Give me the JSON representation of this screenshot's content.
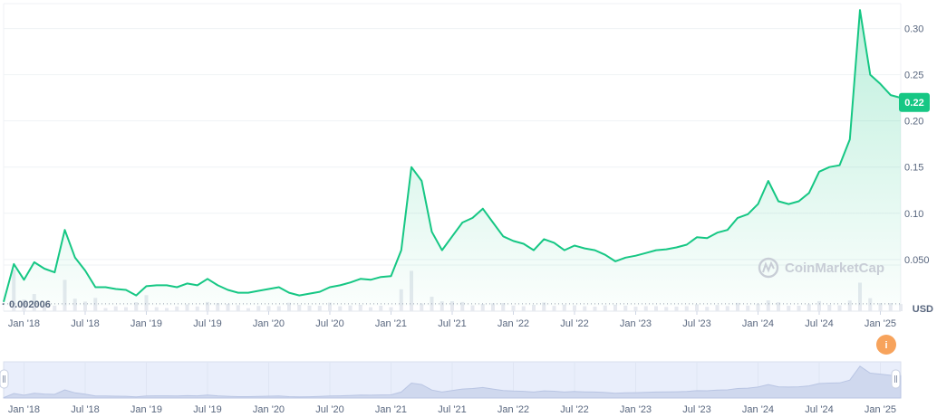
{
  "chart_data": {
    "type": "area",
    "currency": "USD",
    "current_price_label": "0.22",
    "baseline_label": "0.002006",
    "y_ticks": [
      "0.050",
      "0.10",
      "0.15",
      "0.20",
      "0.25",
      "0.30"
    ],
    "y_tick_values": [
      0.05,
      0.1,
      0.15,
      0.2,
      0.25,
      0.3
    ],
    "ylim": [
      -0.006,
      0.327
    ],
    "x_ticks": [
      "Jan '18",
      "Jul '18",
      "Jan '19",
      "Jul '19",
      "Jan '20",
      "Jul '20",
      "Jan '21",
      "Jul '21",
      "Jan '22",
      "Jul '22",
      "Jan '23",
      "Jul '23",
      "Jan '24",
      "Jul '24",
      "Jan '25"
    ],
    "x_tick_dates": [
      "2018-01",
      "2018-07",
      "2019-01",
      "2019-07",
      "2020-01",
      "2020-07",
      "2021-01",
      "2021-07",
      "2022-01",
      "2022-07",
      "2023-01",
      "2023-07",
      "2024-01",
      "2024-07",
      "2025-01"
    ],
    "xlim": [
      "2017-11",
      "2025-03"
    ],
    "line_color": "#16c784",
    "watermark": "CoinMarketCap",
    "info_icon": "i",
    "series": [
      {
        "x": [
          "2017-11",
          "2017-12",
          "2018-01",
          "2018-02",
          "2018-03",
          "2018-04",
          "2018-05",
          "2018-06",
          "2018-07",
          "2018-08",
          "2018-09",
          "2018-10",
          "2018-11",
          "2018-12",
          "2019-01",
          "2019-02",
          "2019-03",
          "2019-04",
          "2019-05",
          "2019-06",
          "2019-07",
          "2019-08",
          "2019-09",
          "2019-10",
          "2019-11",
          "2019-12",
          "2020-01",
          "2020-02",
          "2020-03",
          "2020-04",
          "2020-05",
          "2020-06",
          "2020-07",
          "2020-08",
          "2020-09",
          "2020-10",
          "2020-11",
          "2020-12",
          "2021-01",
          "2021-02",
          "2021-03",
          "2021-04",
          "2021-05",
          "2021-06",
          "2021-07",
          "2021-08",
          "2021-09",
          "2021-10",
          "2021-11",
          "2021-12",
          "2022-01",
          "2022-02",
          "2022-03",
          "2022-04",
          "2022-05",
          "2022-06",
          "2022-07",
          "2022-08",
          "2022-09",
          "2022-10",
          "2022-11",
          "2022-12",
          "2023-01",
          "2023-02",
          "2023-03",
          "2023-04",
          "2023-05",
          "2023-06",
          "2023-07",
          "2023-08",
          "2023-09",
          "2023-10",
          "2023-11",
          "2023-12",
          "2024-01",
          "2024-02",
          "2024-03",
          "2024-04",
          "2024-05",
          "2024-06",
          "2024-07",
          "2024-08",
          "2024-09",
          "2024-10",
          "2024-11",
          "2024-12",
          "2025-01",
          "2025-02",
          "2025-03"
        ],
        "y": [
          0.004,
          0.045,
          0.028,
          0.047,
          0.04,
          0.036,
          0.082,
          0.052,
          0.038,
          0.02,
          0.02,
          0.018,
          0.017,
          0.011,
          0.021,
          0.022,
          0.022,
          0.02,
          0.024,
          0.022,
          0.029,
          0.022,
          0.017,
          0.014,
          0.014,
          0.016,
          0.018,
          0.02,
          0.014,
          0.011,
          0.013,
          0.015,
          0.02,
          0.022,
          0.025,
          0.029,
          0.028,
          0.031,
          0.032,
          0.06,
          0.15,
          0.135,
          0.08,
          0.06,
          0.075,
          0.09,
          0.095,
          0.105,
          0.09,
          0.075,
          0.07,
          0.067,
          0.06,
          0.072,
          0.068,
          0.06,
          0.065,
          0.062,
          0.06,
          0.055,
          0.048,
          0.052,
          0.054,
          0.057,
          0.06,
          0.061,
          0.063,
          0.066,
          0.074,
          0.073,
          0.079,
          0.082,
          0.095,
          0.099,
          0.11,
          0.135,
          0.113,
          0.11,
          0.113,
          0.122,
          0.145,
          0.15,
          0.152,
          0.18,
          0.32,
          0.25,
          0.24,
          0.228,
          0.225
        ]
      }
    ]
  }
}
